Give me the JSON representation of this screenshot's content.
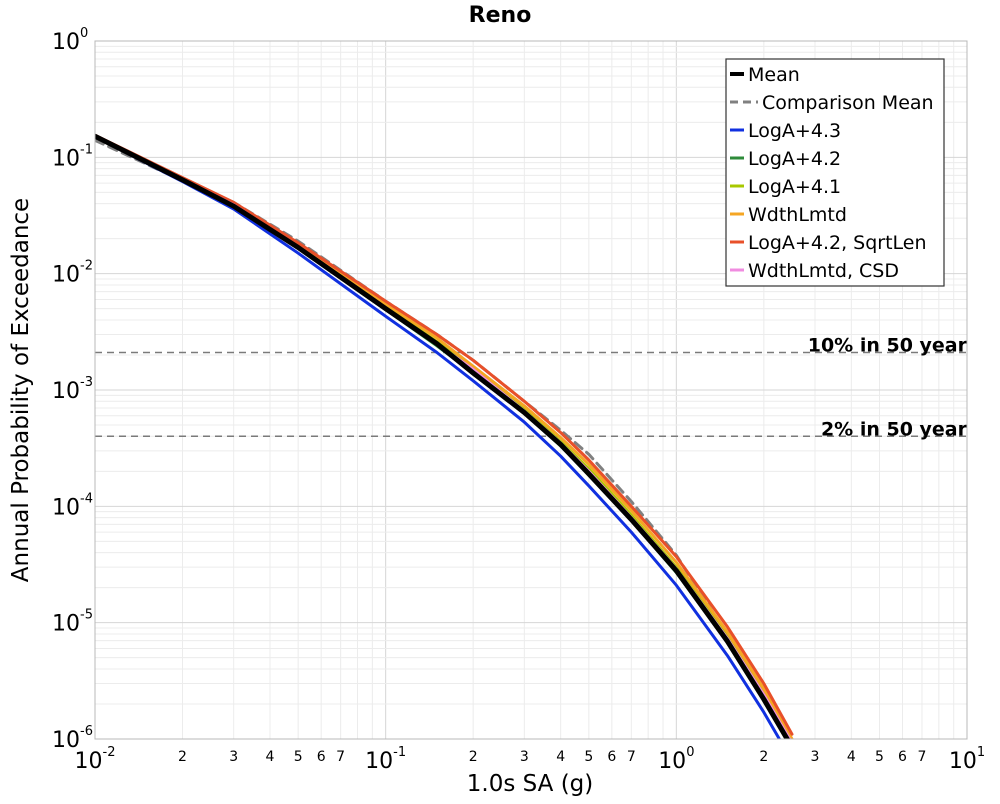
{
  "chart_data": {
    "type": "line",
    "title": "Reno",
    "xlabel": "1.0s SA (g)",
    "ylabel": "Annual Probability of Exceedance",
    "xscale": "log",
    "yscale": "log",
    "xlim": [
      0.01,
      10
    ],
    "ylim": [
      1e-06,
      1
    ],
    "grid": true,
    "legend_position": "top-right",
    "x_major_ticks": [
      {
        "value": 0.01,
        "base": "10",
        "exp": "-2"
      },
      {
        "value": 0.1,
        "base": "10",
        "exp": "-1"
      },
      {
        "value": 1,
        "base": "10",
        "exp": "0"
      },
      {
        "value": 10,
        "base": "10",
        "exp": "1"
      }
    ],
    "x_minor_ticks": [
      {
        "value": 0.02,
        "label": "2"
      },
      {
        "value": 0.03,
        "label": "3"
      },
      {
        "value": 0.04,
        "label": "4"
      },
      {
        "value": 0.05,
        "label": "5"
      },
      {
        "value": 0.06,
        "label": "6"
      },
      {
        "value": 0.07,
        "label": "7"
      },
      {
        "value": 0.2,
        "label": "2"
      },
      {
        "value": 0.3,
        "label": "3"
      },
      {
        "value": 0.4,
        "label": "4"
      },
      {
        "value": 0.5,
        "label": "5"
      },
      {
        "value": 0.6,
        "label": "6"
      },
      {
        "value": 0.7,
        "label": "7"
      },
      {
        "value": 2,
        "label": "2"
      },
      {
        "value": 3,
        "label": "3"
      },
      {
        "value": 4,
        "label": "4"
      },
      {
        "value": 5,
        "label": "5"
      },
      {
        "value": 6,
        "label": "6"
      },
      {
        "value": 7,
        "label": "7"
      }
    ],
    "y_major_ticks": [
      {
        "value": 1,
        "base": "10",
        "exp": "0"
      },
      {
        "value": 0.1,
        "base": "10",
        "exp": "-1"
      },
      {
        "value": 0.01,
        "base": "10",
        "exp": "-2"
      },
      {
        "value": 0.001,
        "base": "10",
        "exp": "-3"
      },
      {
        "value": 0.0001,
        "base": "10",
        "exp": "-4"
      },
      {
        "value": 1e-05,
        "base": "10",
        "exp": "-5"
      },
      {
        "value": 1e-06,
        "base": "10",
        "exp": "-6"
      }
    ],
    "reference_lines": [
      {
        "label": "10% in 50 year",
        "y": 0.0021
      },
      {
        "label": "2% in 50 year",
        "y": 0.0004
      }
    ],
    "series": [
      {
        "name": "Comparison Mean",
        "color": "#808080",
        "dashed": true,
        "width": 3,
        "x": [
          0.01,
          0.02,
          0.03,
          0.05,
          0.1,
          0.15,
          0.2,
          0.3,
          0.4,
          0.5,
          0.7,
          1.0,
          1.5,
          2.0,
          2.5
        ],
        "y": [
          0.14,
          0.063,
          0.041,
          0.019,
          0.0058,
          0.003,
          0.0018,
          0.0008,
          0.00045,
          0.00028,
          0.00011,
          3.8e-05,
          7.8e-06,
          2.2e-06,
          9e-07
        ]
      },
      {
        "name": "LogA+4.3",
        "color": "#1030e0",
        "width": 3,
        "x": [
          0.01,
          0.02,
          0.03,
          0.05,
          0.1,
          0.15,
          0.2,
          0.3,
          0.4,
          0.5,
          0.7,
          1.0,
          1.5,
          2.0,
          2.5
        ],
        "y": [
          0.15,
          0.062,
          0.036,
          0.015,
          0.0043,
          0.0021,
          0.0012,
          0.00053,
          0.00027,
          0.00015,
          6e-05,
          2.1e-05,
          5.2e-06,
          1.7e-06,
          6.5e-07
        ]
      },
      {
        "name": "LogA+4.2",
        "color": "#2e8b3a",
        "width": 3,
        "x": [
          0.01,
          0.02,
          0.03,
          0.05,
          0.1,
          0.15,
          0.2,
          0.3,
          0.4,
          0.5,
          0.7,
          1.0,
          1.5,
          2.0,
          2.5
        ],
        "y": [
          0.152,
          0.064,
          0.038,
          0.0165,
          0.0049,
          0.0024,
          0.0014,
          0.00063,
          0.00033,
          0.00019,
          7.6e-05,
          2.7e-05,
          6.8e-06,
          2.2e-06,
          8.5e-07
        ]
      },
      {
        "name": "LogA+4.1",
        "color": "#a8c800",
        "width": 3,
        "x": [
          0.01,
          0.02,
          0.03,
          0.05,
          0.1,
          0.15,
          0.2,
          0.3,
          0.4,
          0.5,
          0.7,
          1.0,
          1.5,
          2.0,
          2.5
        ],
        "y": [
          0.153,
          0.065,
          0.039,
          0.0172,
          0.0052,
          0.0026,
          0.0015,
          0.00068,
          0.00036,
          0.00021,
          8.4e-05,
          3e-05,
          7.6e-06,
          2.5e-06,
          9.5e-07
        ]
      },
      {
        "name": "WdthLmtd",
        "color": "#f5a623",
        "width": 3,
        "x": [
          0.01,
          0.02,
          0.03,
          0.05,
          0.1,
          0.15,
          0.2,
          0.3,
          0.4,
          0.5,
          0.7,
          1.0,
          1.5,
          2.0,
          2.5
        ],
        "y": [
          0.154,
          0.066,
          0.04,
          0.0178,
          0.0055,
          0.0028,
          0.0016,
          0.00073,
          0.00039,
          0.00023,
          9.2e-05,
          3.3e-05,
          8.3e-06,
          2.7e-06,
          1e-06
        ]
      },
      {
        "name": "LogA+4.2, SqrtLen",
        "color": "#e8502a",
        "width": 3,
        "x": [
          0.01,
          0.02,
          0.03,
          0.05,
          0.1,
          0.15,
          0.2,
          0.3,
          0.4,
          0.5,
          0.7,
          1.0,
          1.5,
          2.0,
          2.5
        ],
        "y": [
          0.155,
          0.067,
          0.041,
          0.0184,
          0.0058,
          0.003,
          0.0018,
          0.0008,
          0.00043,
          0.00025,
          0.0001,
          3.7e-05,
          9.2e-06,
          3e-06,
          1.1e-06
        ]
      },
      {
        "name": "WdthLmtd, CSD",
        "color": "#f08ce0",
        "width": 3,
        "x": [
          0.01,
          0.02,
          0.03,
          0.05,
          0.1,
          0.15,
          0.2,
          0.3,
          0.4,
          0.5,
          0.7,
          1.0,
          1.5,
          2.0,
          2.5
        ],
        "y": [
          0.153,
          0.065,
          0.039,
          0.017,
          0.0051,
          0.0025,
          0.0015,
          0.00066,
          0.00035,
          0.0002,
          8e-05,
          2.9e-05,
          7.3e-06,
          2.4e-06,
          9.2e-07
        ]
      },
      {
        "name": "Mean",
        "color": "#000000",
        "width": 5,
        "x": [
          0.01,
          0.02,
          0.03,
          0.05,
          0.1,
          0.15,
          0.2,
          0.3,
          0.4,
          0.5,
          0.7,
          1.0,
          1.5,
          2.0,
          2.5
        ],
        "y": [
          0.152,
          0.064,
          0.038,
          0.0168,
          0.005,
          0.0025,
          0.0014,
          0.00064,
          0.00034,
          0.00019,
          7.7e-05,
          2.8e-05,
          6.9e-06,
          2.2e-06,
          8.5e-07
        ]
      }
    ],
    "legend_order": [
      "Mean",
      "Comparison Mean",
      "LogA+4.3",
      "LogA+4.2",
      "LogA+4.1",
      "WdthLmtd",
      "LogA+4.2, SqrtLen",
      "WdthLmtd, CSD"
    ]
  }
}
